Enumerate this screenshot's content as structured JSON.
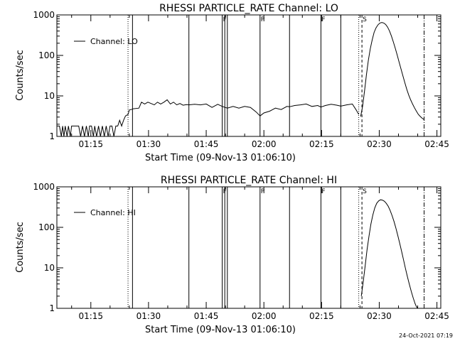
{
  "footer": {
    "timestamp": "24-Oct-2021 07:19"
  },
  "chart_data": [
    {
      "type": "line",
      "title": "RHESSI PARTICLE_RATE Channel: LO",
      "xlabel": "Start Time (09-Nov-13 01:06:10)",
      "ylabel": "Counts/sec",
      "yscale": "log",
      "ylim": [
        1,
        1000
      ],
      "xlim": [
        "01:06:10",
        "02:46:00"
      ],
      "xticks": [
        "01:15",
        "01:30",
        "01:45",
        "02:00",
        "02:15",
        "02:30",
        "02:45"
      ],
      "yticks": [
        "1",
        "10",
        "100",
        "1000"
      ],
      "legend": {
        "entries": [
          "Channel: LO"
        ],
        "position": "top-left"
      },
      "grid": false,
      "vlines": [
        {
          "t": "01:24:40",
          "style": "dotted"
        },
        {
          "t": "01:25:50",
          "style": "solid"
        },
        {
          "t": "01:40:30",
          "style": "solid"
        },
        {
          "t": "01:49:10",
          "style": "solid",
          "label": "F"
        },
        {
          "t": "01:49:50",
          "style": "solid"
        },
        {
          "t": "01:50:30",
          "style": "solid"
        },
        {
          "t": "01:59:00",
          "style": "solid",
          "label": "P"
        },
        {
          "t": "02:06:40",
          "style": "solid"
        },
        {
          "t": "02:14:50",
          "style": "solid",
          "label": "F"
        },
        {
          "t": "02:20:00",
          "style": "solid"
        },
        {
          "t": "02:24:40",
          "style": "dotted"
        },
        {
          "t": "02:25:30",
          "style": "dashed",
          "label": "S"
        },
        {
          "t": "02:41:40",
          "style": "dashdot"
        }
      ],
      "series": [
        {
          "name": "Channel: LO",
          "segments": [
            {
              "x": [
                "01:06:10",
                "01:06:50",
                "01:07:20",
                "01:07:40",
                "01:08:00",
                "01:08:20",
                "01:08:50",
                "01:09:10",
                "01:09:40",
                "01:10:00",
                "01:10:30",
                "01:10:50",
                "01:11:20",
                "01:11:50",
                "01:12:20",
                "01:12:50",
                "01:13:20",
                "01:13:50",
                "01:14:20",
                "01:14:40",
                "01:15:10",
                "01:15:40",
                "01:16:00",
                "01:16:30",
                "01:17:00",
                "01:17:30",
                "01:18:00",
                "01:18:30",
                "01:19:00",
                "01:19:30",
                "01:20:00",
                "01:20:30",
                "01:21:00",
                "01:21:30",
                "01:22:00",
                "01:22:30",
                "01:23:00",
                "01:23:30",
                "01:24:00",
                "01:24:40",
                "01:25:00",
                "01:25:30",
                "01:25:50"
              ],
              "y": [
                1.8,
                1.8,
                1.0,
                1.8,
                1.0,
                1.8,
                1.0,
                1.8,
                1.0,
                1.8,
                1.8,
                1.8,
                1.8,
                1.8,
                1.0,
                1.8,
                1.0,
                1.8,
                1.0,
                1.8,
                1.8,
                1.0,
                1.8,
                1.0,
                1.8,
                1.0,
                1.8,
                1.0,
                1.8,
                1.0,
                1.8,
                1.8,
                1.0,
                1.8,
                1.8,
                2.5,
                1.8,
                2.5,
                3.2,
                3.5,
                4.5,
                4.6,
                4.7
              ]
            },
            {
              "x": [
                "01:25:50",
                "01:27:30",
                "01:28:10",
                "01:29:00",
                "01:29:50",
                "01:30:40",
                "01:31:30",
                "01:32:20",
                "01:33:10",
                "01:34:00",
                "01:34:50",
                "01:35:40",
                "01:36:30",
                "01:37:20",
                "01:38:10",
                "01:39:00",
                "01:39:50",
                "01:40:30",
                "01:42:00",
                "01:43:30",
                "01:45:00",
                "01:46:30",
                "01:48:00",
                "01:49:10",
                "01:50:30",
                "01:52:00",
                "01:53:30",
                "01:55:00",
                "01:56:30",
                "01:58:00",
                "01:59:00",
                "02:00:00",
                "02:01:30",
                "02:03:00",
                "02:04:30",
                "02:06:00",
                "02:06:40",
                "02:08:00",
                "02:09:30",
                "02:11:00",
                "02:12:30",
                "02:14:00",
                "02:14:50",
                "02:16:00",
                "02:17:30",
                "02:19:00",
                "02:20:00",
                "02:21:30",
                "02:23:00",
                "02:24:00",
                "02:24:40"
              ],
              "y": [
                4.8,
                5.0,
                7.0,
                6.3,
                7.0,
                6.5,
                6.0,
                7.0,
                6.3,
                7.0,
                8.0,
                6.3,
                7.0,
                6.0,
                6.5,
                5.9,
                6.1,
                6.0,
                6.2,
                6.0,
                6.3,
                5.2,
                6.2,
                5.5,
                5.0,
                5.5,
                5.0,
                5.5,
                5.2,
                4.0,
                3.2,
                3.8,
                4.2,
                5.0,
                4.6,
                5.5,
                5.4,
                5.8,
                6.0,
                6.3,
                5.5,
                5.8,
                5.3,
                5.8,
                6.2,
                5.9,
                5.6,
                6.0,
                6.3,
                4.5,
                3.5
              ]
            },
            {
              "x": [
                "02:25:10",
                "02:25:40",
                "02:26:10",
                "02:26:40",
                "02:27:10",
                "02:27:40",
                "02:28:10",
                "02:28:40",
                "02:29:10",
                "02:29:40",
                "02:30:10",
                "02:30:40",
                "02:31:10",
                "02:31:40",
                "02:32:10",
                "02:32:40",
                "02:33:10",
                "02:33:40",
                "02:34:10",
                "02:34:40",
                "02:35:10",
                "02:35:40",
                "02:36:10",
                "02:36:40",
                "02:37:10",
                "02:37:40",
                "02:38:10",
                "02:38:40",
                "02:39:10",
                "02:39:40",
                "02:40:10",
                "02:40:40",
                "02:41:10",
                "02:41:40"
              ],
              "y": [
                3.1,
                5.5,
                13,
                33,
                75,
                145,
                240,
                370,
                480,
                570,
                630,
                650,
                630,
                580,
                500,
                400,
                300,
                215,
                150,
                102,
                68,
                46,
                31,
                21,
                14.5,
                10.5,
                8.0,
                6.3,
                5.1,
                4.2,
                3.5,
                3.1,
                2.8,
                2.6
              ]
            }
          ]
        }
      ]
    },
    {
      "type": "line",
      "title": "RHESSI PARTICLE_RATE Channel: HI",
      "xlabel": "Start Time (09-Nov-13 01:06:10)",
      "ylabel": "Counts/sec",
      "yscale": "log",
      "ylim": [
        1,
        1000
      ],
      "xlim": [
        "01:06:10",
        "02:46:00"
      ],
      "xticks": [
        "01:15",
        "01:30",
        "01:45",
        "02:00",
        "02:15",
        "02:30",
        "02:45"
      ],
      "yticks": [
        "1",
        "10",
        "100",
        "1000"
      ],
      "legend": {
        "entries": [
          "Channel: HI"
        ],
        "position": "top-left"
      },
      "grid": false,
      "vlines": [
        {
          "t": "01:24:40",
          "style": "dotted"
        },
        {
          "t": "01:25:50",
          "style": "solid"
        },
        {
          "t": "01:40:30",
          "style": "solid"
        },
        {
          "t": "01:49:10",
          "style": "solid",
          "label": "F"
        },
        {
          "t": "01:49:50",
          "style": "solid"
        },
        {
          "t": "01:50:30",
          "style": "solid"
        },
        {
          "t": "01:59:00",
          "style": "solid",
          "label": "P"
        },
        {
          "t": "02:06:40",
          "style": "solid"
        },
        {
          "t": "02:14:50",
          "style": "solid",
          "label": "F"
        },
        {
          "t": "02:20:00",
          "style": "solid"
        },
        {
          "t": "02:24:40",
          "style": "dotted"
        },
        {
          "t": "02:25:30",
          "style": "dashed",
          "label": "S"
        },
        {
          "t": "02:41:40",
          "style": "dashdot"
        }
      ],
      "series": [
        {
          "name": "Channel: HI",
          "segments": [
            {
              "x": [
                "02:25:20",
                "02:25:50",
                "02:26:20",
                "02:26:50",
                "02:27:20",
                "02:27:50",
                "02:28:20",
                "02:28:50",
                "02:29:20",
                "02:29:50",
                "02:30:20",
                "02:30:50",
                "02:31:20",
                "02:31:50",
                "02:32:20",
                "02:32:50",
                "02:33:20",
                "02:33:50",
                "02:34:20",
                "02:34:50",
                "02:35:20",
                "02:35:50",
                "02:36:20",
                "02:36:50",
                "02:37:20",
                "02:37:50",
                "02:38:20",
                "02:38:50",
                "02:39:20",
                "02:39:40",
                "02:40:00"
              ],
              "y": [
                2.0,
                4.5,
                11,
                28,
                60,
                120,
                200,
                300,
                390,
                450,
                480,
                470,
                440,
                390,
                330,
                260,
                195,
                140,
                95,
                62,
                40,
                25,
                15.5,
                9.5,
                6.0,
                3.9,
                2.6,
                1.8,
                1.3,
                1.1,
                1.0
              ]
            }
          ]
        }
      ]
    }
  ]
}
